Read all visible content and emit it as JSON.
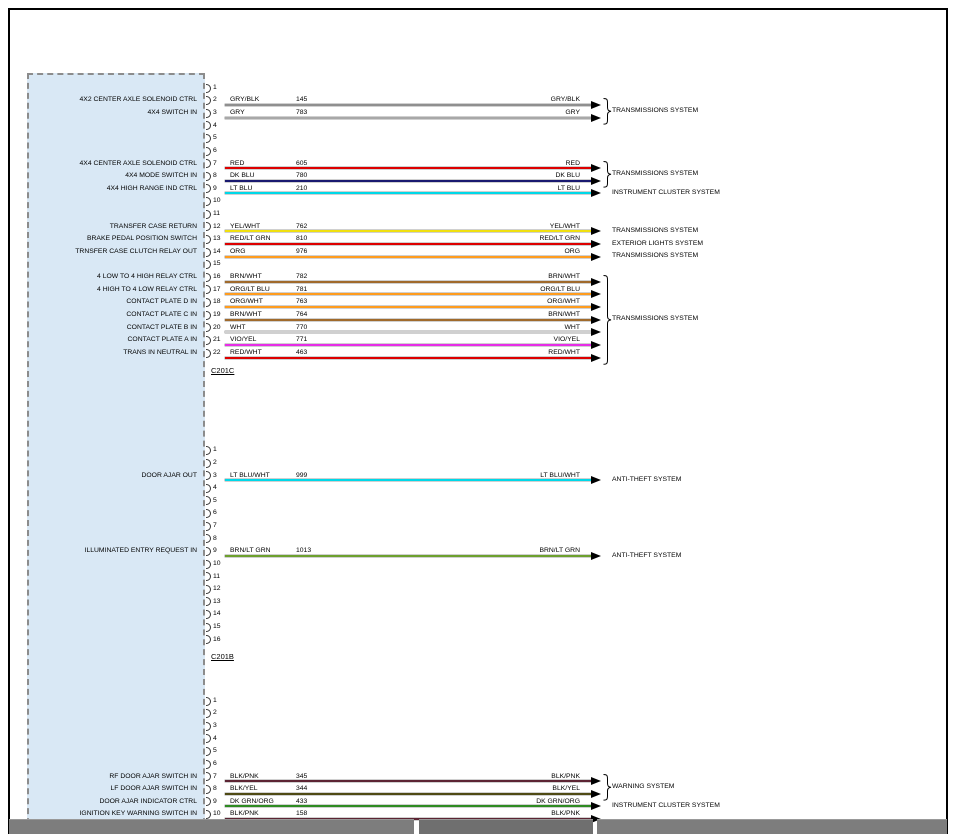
{
  "connectors": [
    {
      "id": "C201C",
      "pin_count": 22,
      "wires": [
        {
          "pin": 2,
          "label": "4X2 CENTER AXLE SOLENOID CTRL",
          "code": "GRY/BLK",
          "circuit": "145",
          "color": "#8f8f8f"
        },
        {
          "pin": 3,
          "label": "4X4 SWITCH IN",
          "code": "GRY",
          "circuit": "783",
          "color": "#a8a8a8"
        },
        {
          "pin": 7,
          "label": "4X4 CENTER AXLE SOLENOID CTRL",
          "code": "RED",
          "circuit": "605",
          "color": "#dd0000"
        },
        {
          "pin": 8,
          "label": "4X4 MODE SWITCH IN",
          "code": "DK BLU",
          "circuit": "780",
          "color": "#191970"
        },
        {
          "pin": 9,
          "label": "4X4 HIGH RANGE IND CTRL",
          "code": "LT BLU",
          "circuit": "210",
          "color": "#00d8e8"
        },
        {
          "pin": 12,
          "label": "TRANSFER CASE RETURN",
          "code": "YEL/WHT",
          "circuit": "762",
          "color": "#f0e010"
        },
        {
          "pin": 13,
          "label": "BRAKE PEDAL POSITION SWITCH",
          "code": "RED/LT GRN",
          "circuit": "810",
          "color": "#dd0000"
        },
        {
          "pin": 14,
          "label": "TRNSFER CASE CLUTCH RELAY OUT",
          "code": "ORG",
          "circuit": "976",
          "color": "#ff9c1e"
        },
        {
          "pin": 16,
          "label": "4 LOW TO 4 HIGH RELAY CTRL",
          "code": "BRN/WHT",
          "circuit": "782",
          "color": "#a06a2c"
        },
        {
          "pin": 17,
          "label": "4 HIGH TO 4 LOW RELAY CTRL",
          "code": "ORG/LT BLU",
          "circuit": "781",
          "color": "#ff9c1e"
        },
        {
          "pin": 18,
          "label": "CONTACT PLATE D IN",
          "code": "ORG/WHT",
          "circuit": "763",
          "color": "#ff9c1e"
        },
        {
          "pin": 19,
          "label": "CONTACT PLATE C IN",
          "code": "BRN/WHT",
          "circuit": "764",
          "color": "#a06a2c"
        },
        {
          "pin": 20,
          "label": "CONTACT PLATE B IN",
          "code": "WHT",
          "circuit": "770",
          "color": "#d0d0d0"
        },
        {
          "pin": 21,
          "label": "CONTACT PLATE A IN",
          "code": "VIO/YEL",
          "circuit": "771",
          "color": "#e62ee6"
        },
        {
          "pin": 22,
          "label": "TRANS IN NEUTRAL IN",
          "code": "RED/WHT",
          "circuit": "463",
          "color": "#dd0000"
        }
      ],
      "destinations": [
        {
          "pins": [
            2,
            3
          ],
          "label": "TRANSMISSIONS SYSTEM"
        },
        {
          "pins": [
            7,
            8
          ],
          "label": "TRANSMISSIONS SYSTEM"
        },
        {
          "pins": [
            9
          ],
          "label": "INSTRUMENT CLUSTER SYSTEM"
        },
        {
          "pins": [
            12
          ],
          "label": "TRANSMISSIONS SYSTEM"
        },
        {
          "pins": [
            13
          ],
          "label": "EXTERIOR LIGHTS SYSTEM"
        },
        {
          "pins": [
            14
          ],
          "label": "TRANSMISSIONS SYSTEM"
        },
        {
          "pins": [
            16,
            17,
            18,
            19,
            20,
            21,
            22
          ],
          "label": "TRANSMISSIONS SYSTEM"
        }
      ]
    },
    {
      "id": "C201B",
      "pin_count": 16,
      "wires": [
        {
          "pin": 3,
          "label": "DOOR AJAR OUT",
          "code": "LT BLU/WHT",
          "circuit": "999",
          "color": "#00d8e8"
        },
        {
          "pin": 9,
          "label": "ILLUMINATED ENTRY REQUEST IN",
          "code": "BRN/LT GRN",
          "circuit": "1013",
          "color": "#6da02e"
        }
      ],
      "destinations": [
        {
          "pins": [
            3
          ],
          "label": "ANTI-THEFT SYSTEM"
        },
        {
          "pins": [
            9
          ],
          "label": "ANTI-THEFT SYSTEM"
        }
      ]
    },
    {
      "id": "",
      "pin_count": 10,
      "wires": [
        {
          "pin": 7,
          "label": "RF DOOR AJAR SWITCH IN",
          "code": "BLK/PNK",
          "circuit": "345",
          "color": "#5c2433"
        },
        {
          "pin": 8,
          "label": "LF DOOR AJAR SWITCH IN",
          "code": "BLK/YEL",
          "circuit": "344",
          "color": "#4f4a14"
        },
        {
          "pin": 9,
          "label": "DOOR AJAR INDICATOR CTRL",
          "code": "DK GRN/ORG",
          "circuit": "433",
          "color": "#2e8b22"
        },
        {
          "pin": 10,
          "label": "IGNITION KEY WARNING SWITCH IN",
          "code": "BLK/PNK",
          "circuit": "158",
          "color": "#5c2433"
        }
      ],
      "destinations": [
        {
          "pins": [
            7,
            8
          ],
          "label": "WARNING SYSTEM"
        },
        {
          "pins": [
            9
          ],
          "label": "INSTRUMENT CLUSTER SYSTEM"
        }
      ]
    }
  ]
}
